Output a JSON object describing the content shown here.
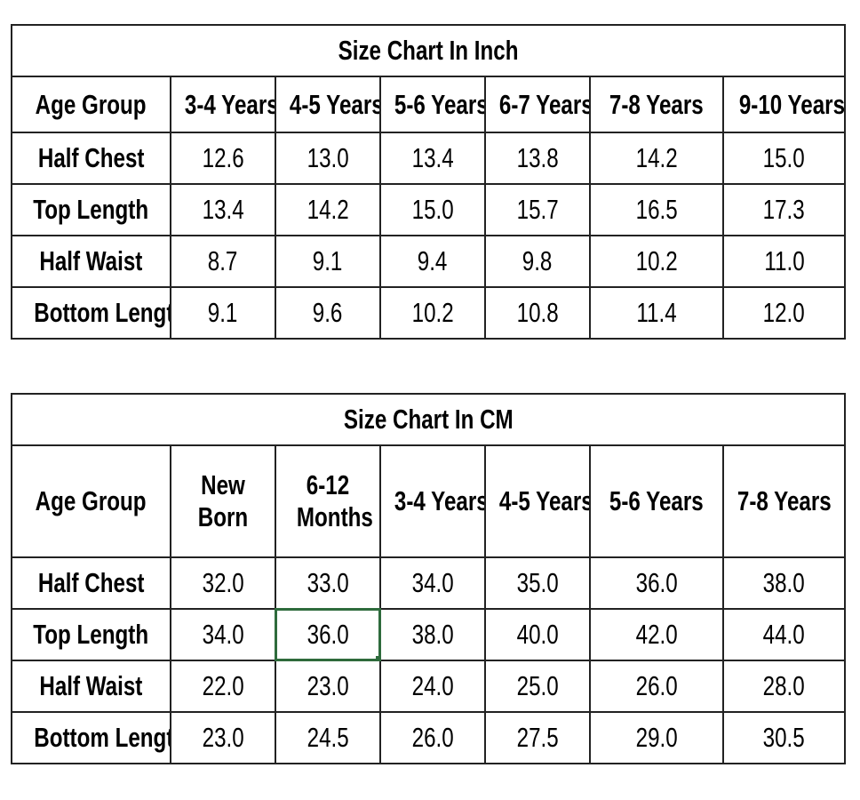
{
  "tables": [
    {
      "title": "Size Chart In Inch",
      "header": [
        "Age Group",
        "3-4 Years",
        "4-5 Years",
        "5-6 Years",
        "6-7 Years",
        "7-8 Years",
        "9-10 Years"
      ],
      "rows": [
        [
          "Half Chest",
          "12.6",
          "13.0",
          "13.4",
          "13.8",
          "14.2",
          "15.0"
        ],
        [
          "Top Length",
          "13.4",
          "14.2",
          "15.0",
          "15.7",
          "16.5",
          "17.3"
        ],
        [
          "Half Waist",
          "8.7",
          "9.1",
          "9.4",
          "9.8",
          "10.2",
          "11.0"
        ],
        [
          "Bottom Length",
          "9.1",
          "9.6",
          "10.2",
          "10.8",
          "11.4",
          "12.0"
        ]
      ]
    },
    {
      "title": "Size Chart In CM",
      "header": [
        "Age Group",
        "New Born",
        "6-12 Months",
        "3-4 Years",
        "4-5 Years",
        "5-6 Years",
        "7-8 Years"
      ],
      "rows": [
        [
          "Half Chest",
          "32.0",
          "33.0",
          "34.0",
          "35.0",
          "36.0",
          "38.0"
        ],
        [
          "Top Length",
          "34.0",
          "36.0",
          "38.0",
          "40.0",
          "42.0",
          "44.0"
        ],
        [
          "Half Waist",
          "22.0",
          "23.0",
          "24.0",
          "25.0",
          "26.0",
          "28.0"
        ],
        [
          "Bottom Length",
          "23.0",
          "24.5",
          "26.0",
          "27.5",
          "29.0",
          "30.5"
        ]
      ]
    }
  ]
}
